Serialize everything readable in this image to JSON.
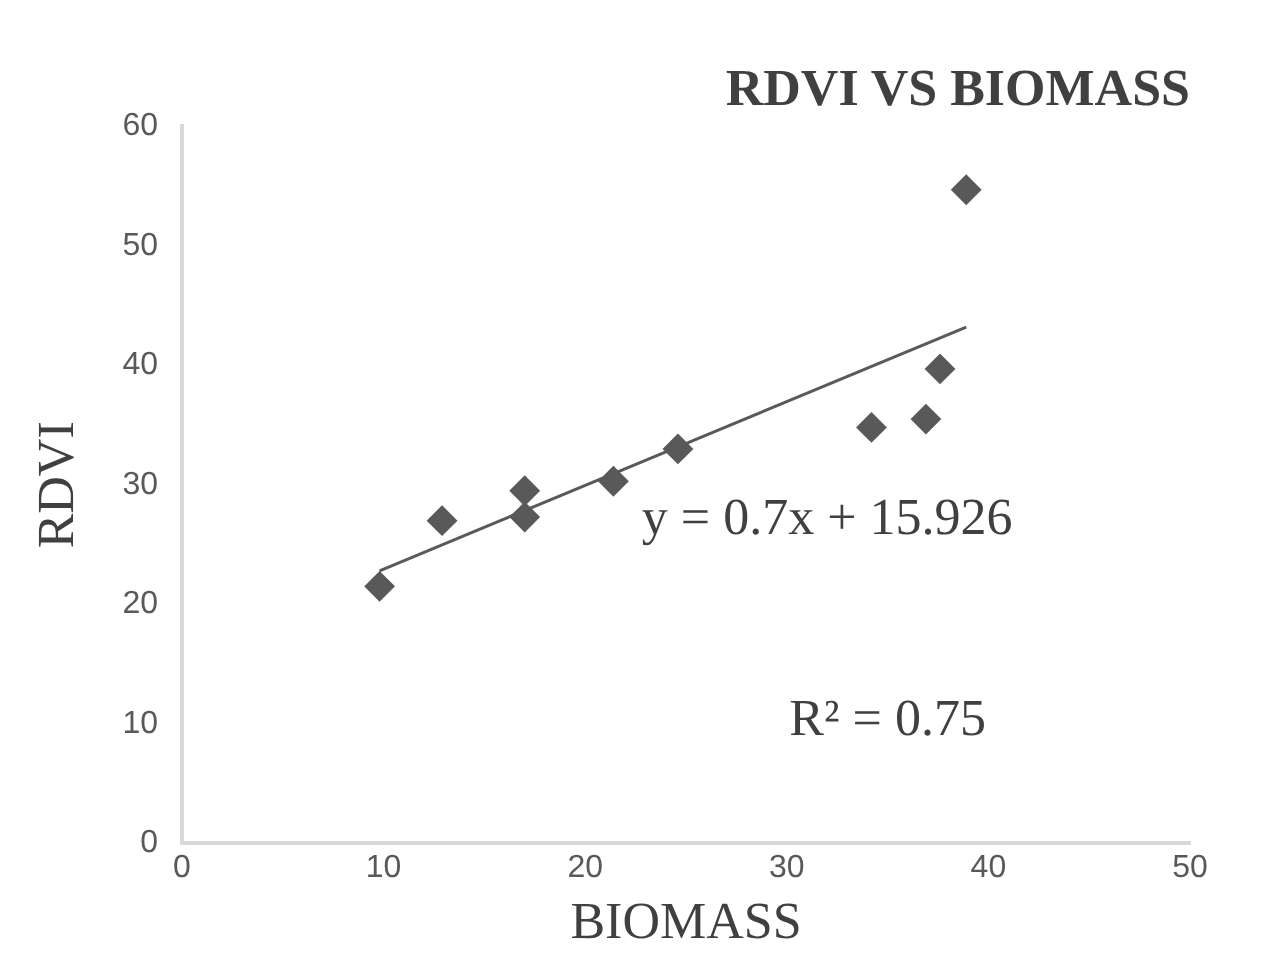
{
  "chart_data": {
    "type": "scatter",
    "title": "RDVI VS BIOMASS",
    "xlabel": "BIOMASS",
    "ylabel": "RDVI",
    "series": [
      {
        "color": "#595959",
        "marker": "diamond",
        "x": [
          9.8,
          12.9,
          17,
          17,
          21.4,
          24.6,
          34.2,
          36.9,
          37.6,
          38.9
        ],
        "values": [
          21.5,
          27,
          29.5,
          27.3,
          30.3,
          33,
          34.8,
          35.5,
          39.7,
          54.7
        ]
      },
      {
        "type": "line",
        "color": "#595959",
        "marker": "none",
        "x": [
          9.8,
          38.9
        ],
        "values": [
          22.8,
          43.2
        ]
      }
    ],
    "annotations": [
      "y = 0.7x + 15.926",
      "R² = 0.75"
    ],
    "xlim": [
      0,
      50
    ],
    "xticks": [
      0,
      10,
      20,
      30,
      40,
      50
    ],
    "ylim": [
      0,
      60
    ],
    "yticks": [
      0,
      10,
      20,
      30,
      40,
      50,
      60
    ],
    "grid": false,
    "legend": false
  }
}
